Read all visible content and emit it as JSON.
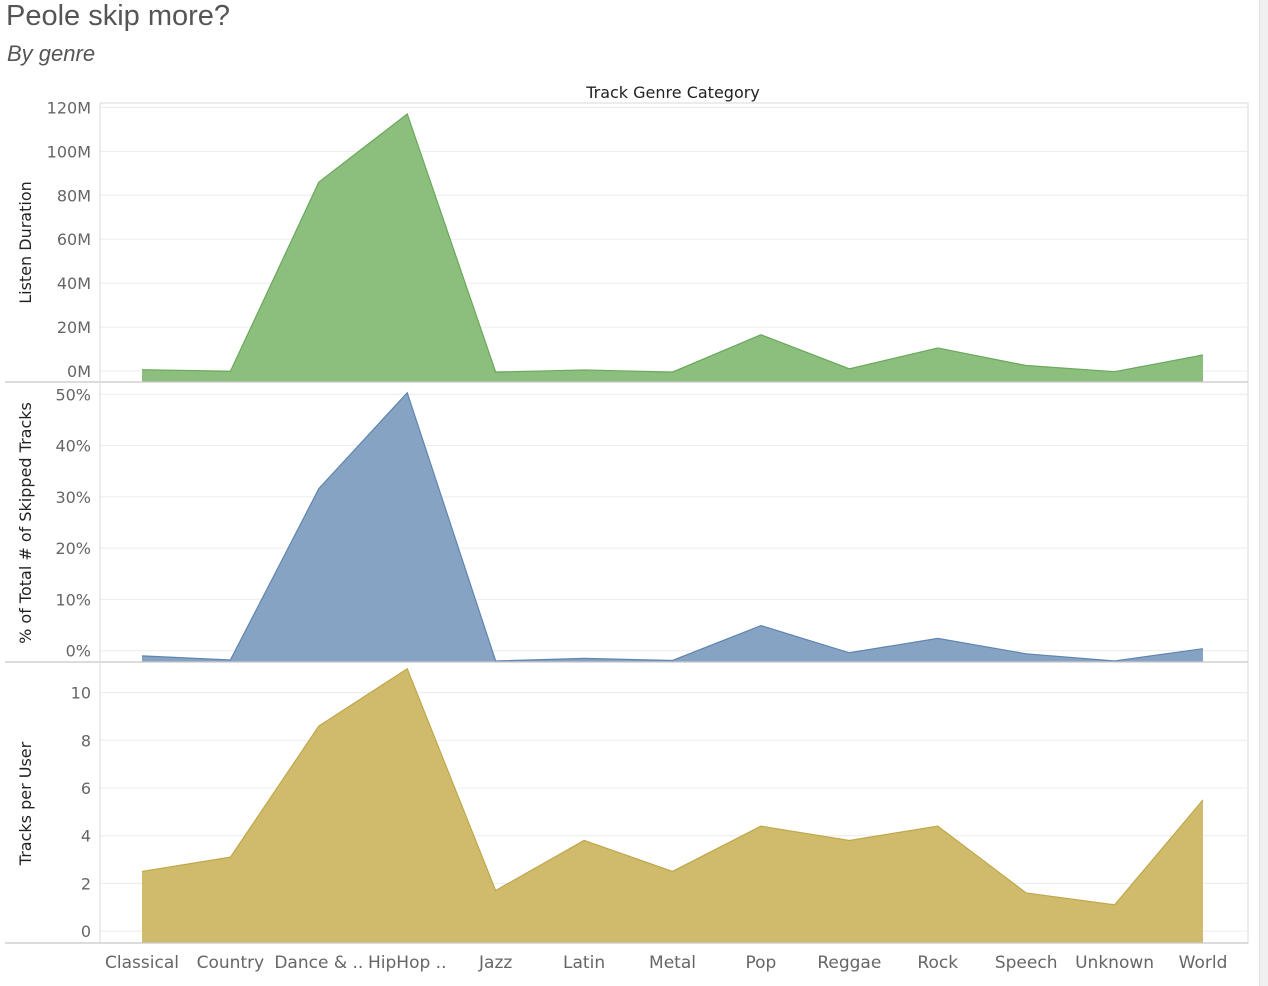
{
  "title": "Peole skip more?",
  "subtitle": "By genre",
  "chart_data": {
    "type": "area",
    "column_title": "Track Genre Category",
    "categories": [
      "Classical",
      "Country",
      "Dance & ..",
      "HipHop ..",
      "Jazz",
      "Latin",
      "Metal",
      "Pop",
      "Reggae",
      "Rock",
      "Speech",
      "Unknown",
      "World"
    ],
    "panels": [
      {
        "name": "Listen Duration",
        "ylabel": "Listen Duration",
        "color": "#8cbf7e",
        "stroke": "#6aa85b",
        "ylim": [
          -5000000,
          122000000
        ],
        "ticks": [
          0,
          20000000,
          40000000,
          60000000,
          80000000,
          100000000,
          120000000
        ],
        "tick_labels": [
          "0M",
          "20M",
          "40M",
          "60M",
          "80M",
          "100M",
          "120M"
        ],
        "values": [
          600000,
          -100000,
          86000000,
          117000000,
          -500000,
          500000,
          -500000,
          16500000,
          1000000,
          10500000,
          2500000,
          -300000,
          7300000
        ]
      },
      {
        "name": "% of Total # of Skipped Tracks",
        "ylabel": "% of Total # of Skipped Tracks",
        "color": "#86a3c3",
        "stroke": "#5f85b0",
        "ylim": [
          -2.2,
          52
        ],
        "ticks": [
          0,
          10,
          20,
          30,
          40,
          50
        ],
        "tick_labels": [
          "0%",
          "10%",
          "20%",
          "30%",
          "40%",
          "50%"
        ],
        "values": [
          -1.0,
          -1.8,
          31.6,
          50.3,
          -2.0,
          -1.5,
          -1.9,
          4.9,
          -0.4,
          2.4,
          -0.6,
          -2.0,
          0.4
        ]
      },
      {
        "name": "Tracks per User",
        "ylabel": "Tracks per User",
        "color": "#cfbb6b",
        "stroke": "#bfa84b",
        "ylim": [
          -0.5,
          11.2
        ],
        "ticks": [
          0,
          2,
          4,
          6,
          8,
          10
        ],
        "tick_labels": [
          "0",
          "2",
          "4",
          "6",
          "8",
          "10"
        ],
        "values": [
          2.5,
          3.1,
          8.6,
          11.0,
          1.7,
          3.8,
          2.5,
          4.4,
          3.8,
          4.4,
          1.6,
          1.1,
          5.5
        ]
      }
    ]
  }
}
